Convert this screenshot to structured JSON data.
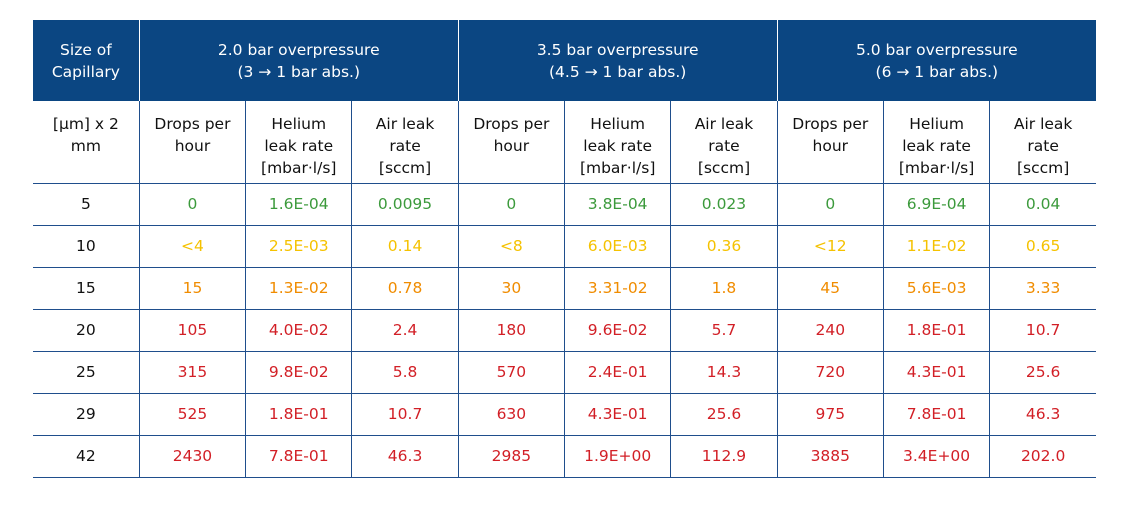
{
  "header": {
    "size_col": [
      "Size of",
      "Capillary"
    ],
    "groups": [
      {
        "title": "2.0 bar overpressure",
        "subtitle": "(3 → 1 bar abs.)"
      },
      {
        "title": "3.5 bar overpressure",
        "subtitle": "(4.5 → 1 bar abs.)"
      },
      {
        "title": "5.0 bar overpressure",
        "subtitle": "(6 → 1 bar abs.)"
      }
    ]
  },
  "subheader": {
    "size_unit": [
      "[µm] x 2",
      "mm"
    ],
    "columns": [
      [
        "Drops per",
        "hour"
      ],
      [
        "Helium",
        "leak rate",
        "[mbar·l/s]"
      ],
      [
        "Air leak",
        "rate",
        "[sccm]"
      ]
    ]
  },
  "colors": {
    "header_bg": "#0b4682",
    "green": "#3c9a3c",
    "yellow": "#f5c200",
    "orange": "#f08c00",
    "red": "#d21f26"
  },
  "rows": [
    {
      "size": "5",
      "level": "green",
      "values": [
        "0",
        "1.6E-04",
        "0.0095",
        "0",
        "3.8E-04",
        "0.023",
        "0",
        "6.9E-04",
        "0.04"
      ]
    },
    {
      "size": "10",
      "level": "yellow",
      "values": [
        "<4",
        "2.5E-03",
        "0.14",
        "<8",
        "6.0E-03",
        "0.36",
        "<12",
        "1.1E-02",
        "0.65"
      ]
    },
    {
      "size": "15",
      "level": "orange",
      "values": [
        "15",
        "1.3E-02",
        "0.78",
        "30",
        "3.31-02",
        "1.8",
        "45",
        "5.6E-03",
        "3.33"
      ]
    },
    {
      "size": "20",
      "level": "red",
      "values": [
        "105",
        "4.0E-02",
        "2.4",
        "180",
        "9.6E-02",
        "5.7",
        "240",
        "1.8E-01",
        "10.7"
      ]
    },
    {
      "size": "25",
      "level": "red",
      "values": [
        "315",
        "9.8E-02",
        "5.8",
        "570",
        "2.4E-01",
        "14.3",
        "720",
        "4.3E-01",
        "25.6"
      ]
    },
    {
      "size": "29",
      "level": "red",
      "values": [
        "525",
        "1.8E-01",
        "10.7",
        "630",
        "4.3E-01",
        "25.6",
        "975",
        "7.8E-01",
        "46.3"
      ]
    },
    {
      "size": "42",
      "level": "red",
      "values": [
        "2430",
        "7.8E-01",
        "46.3",
        "2985",
        "1.9E+00",
        "112.9",
        "3885",
        "3.4E+00",
        "202.0"
      ]
    }
  ]
}
